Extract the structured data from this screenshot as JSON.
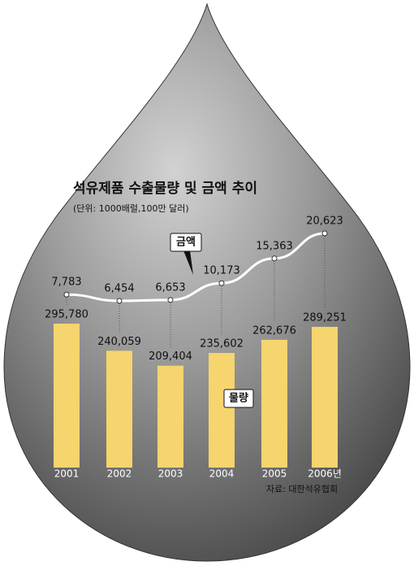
{
  "chart_data": {
    "type": "bar",
    "title": "석유제품 수출물량  및 금액 추이",
    "subtitle": "(단위: 1000배럴,100만 달러)",
    "source": "자료: 대한석유협회",
    "categories": [
      "2001",
      "2002",
      "2003",
      "2004",
      "2005",
      "2006년"
    ],
    "series": [
      {
        "name": "물량",
        "color": "#f6d46e",
        "values": [
          295780,
          240059,
          209404,
          235602,
          262676,
          289251
        ],
        "value_labels": [
          "295,780",
          "240,059",
          "209,404",
          "235,602",
          "262,676",
          "289,251"
        ]
      },
      {
        "name": "금액",
        "type": "line",
        "color": "#ffffff",
        "values": [
          7783,
          6454,
          6653,
          10173,
          15363,
          20623
        ],
        "value_labels": [
          "7,783",
          "6,454",
          "6,653",
          "10,173",
          "15,363",
          "20,623"
        ]
      }
    ]
  }
}
